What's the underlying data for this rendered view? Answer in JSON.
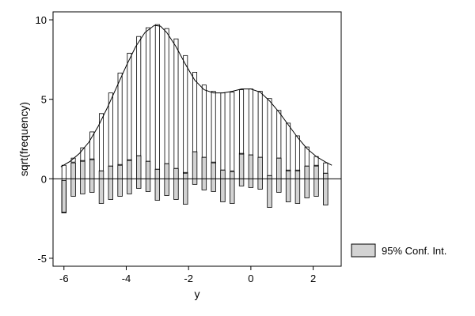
{
  "chart_data": {
    "type": "rootogram",
    "xlabel": "y",
    "ylabel": "sqrt(frequency)",
    "xlim": [
      -6.35,
      2.9
    ],
    "ylim": [
      -5.5,
      10.5
    ],
    "x_ticks": [
      -6,
      -4,
      -2,
      0,
      2
    ],
    "y_ticks": [
      -5,
      0,
      5,
      10
    ],
    "grid": false,
    "legend_position": "right",
    "legend_entries": [
      "95% Conf. Int."
    ],
    "colors": {
      "ci_fill": "#d3d3d3",
      "line": "#000000",
      "background": "#ffffff"
    },
    "curve": {
      "x": [
        -6.1,
        -5.8,
        -5.5,
        -5.2,
        -4.9,
        -4.6,
        -4.3,
        -4.0,
        -3.7,
        -3.4,
        -3.1,
        -2.9,
        -2.7,
        -2.4,
        -2.1,
        -1.8,
        -1.5,
        -1.2,
        -0.9,
        -0.6,
        -0.3,
        0.0,
        0.3,
        0.6,
        0.9,
        1.2,
        1.5,
        1.8,
        2.1,
        2.4,
        2.6
      ],
      "y": [
        0.75,
        1.1,
        1.6,
        2.3,
        3.3,
        4.5,
        5.8,
        7.1,
        8.3,
        9.2,
        9.65,
        9.6,
        9.2,
        8.3,
        7.2,
        6.2,
        5.6,
        5.4,
        5.4,
        5.5,
        5.65,
        5.65,
        5.45,
        4.9,
        4.2,
        3.4,
        2.6,
        1.9,
        1.4,
        1.05,
        0.85
      ]
    },
    "bars": {
      "x": [
        -6.0,
        -5.7,
        -5.4,
        -5.1,
        -4.8,
        -4.5,
        -4.2,
        -3.9,
        -3.6,
        -3.3,
        -3.0,
        -2.7,
        -2.4,
        -2.1,
        -1.8,
        -1.5,
        -1.2,
        -0.9,
        -0.6,
        -0.3,
        0.0,
        0.3,
        0.6,
        0.9,
        1.2,
        1.5,
        1.8,
        2.1,
        2.4
      ],
      "expected": [
        0.85,
        1.3,
        1.95,
        2.95,
        4.1,
        5.4,
        6.65,
        7.9,
        8.95,
        9.5,
        9.7,
        9.45,
        8.8,
        7.75,
        6.7,
        5.9,
        5.5,
        5.4,
        5.45,
        5.6,
        5.65,
        5.5,
        5.05,
        4.3,
        3.5,
        2.7,
        2.0,
        1.4,
        1.0
      ],
      "bottom": [
        -2.1,
        1.05,
        1.1,
        1.2,
        0.5,
        0.8,
        0.85,
        1.15,
        1.45,
        1.1,
        0.6,
        0.95,
        0.65,
        0.35,
        1.7,
        1.35,
        1.0,
        0.55,
        0.5,
        1.55,
        1.5,
        1.35,
        0.2,
        1.3,
        0.5,
        0.5,
        0.8,
        0.8,
        0.35
      ],
      "ci_low": [
        -2.15,
        -1.1,
        -0.95,
        -0.85,
        -1.55,
        -1.3,
        -1.1,
        -0.95,
        -0.6,
        -0.8,
        -1.35,
        -1.05,
        -1.3,
        -1.6,
        -0.35,
        -0.7,
        -0.8,
        -1.45,
        -1.55,
        -0.45,
        -0.55,
        -0.65,
        -1.8,
        -0.85,
        -1.45,
        -1.55,
        -1.2,
        -1.1,
        -1.65
      ],
      "ci_high": [
        -0.1,
        1.0,
        1.15,
        1.25,
        0.5,
        0.8,
        0.9,
        1.2,
        1.45,
        1.1,
        0.6,
        0.95,
        0.65,
        0.4,
        1.7,
        1.35,
        1.05,
        0.55,
        0.45,
        1.6,
        1.5,
        1.35,
        0.2,
        1.3,
        0.55,
        0.55,
        0.8,
        0.85,
        0.35
      ]
    }
  }
}
